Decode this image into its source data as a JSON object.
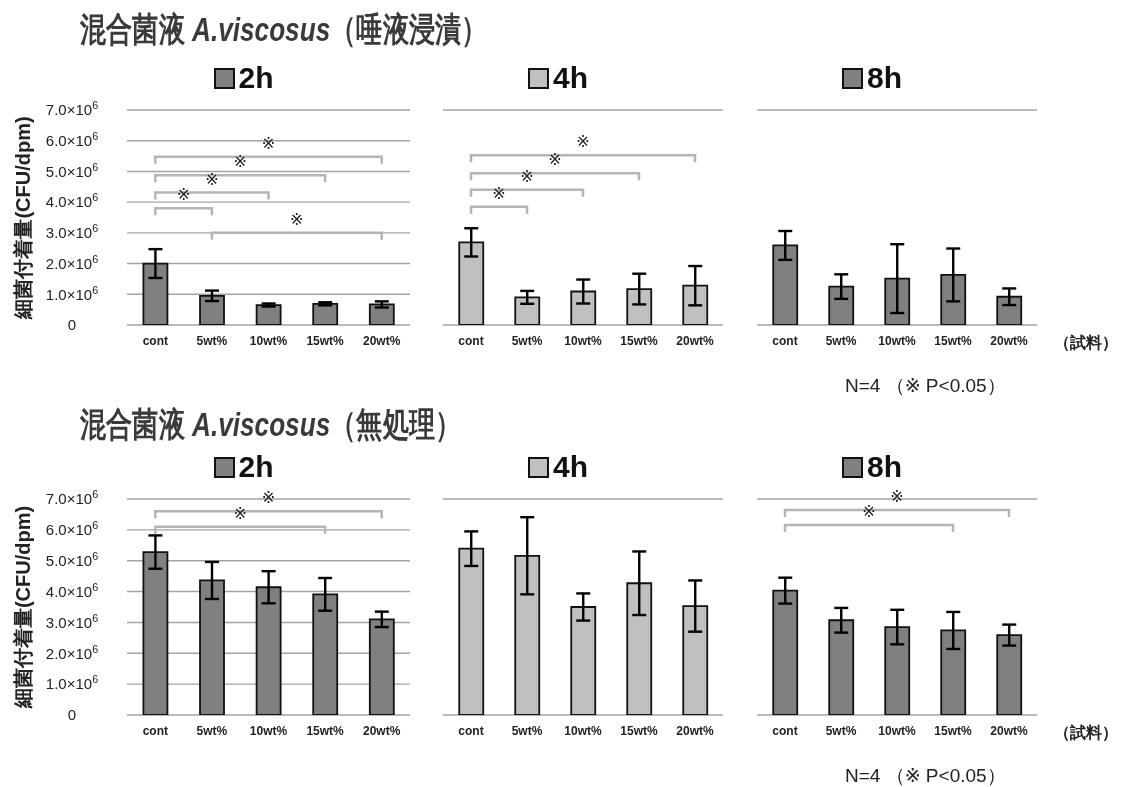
{
  "chart_data": [
    {
      "type": "bar",
      "title": "混合菌液 A.viscosus（唾液浸漬）",
      "ylabel": "細菌付着量(CFU/dpm)",
      "categories": [
        "cont",
        "5wt%",
        "10wt%",
        "15wt%",
        "20wt%"
      ],
      "series": [
        {
          "name": "2h",
          "color": "#808080",
          "values": [
            2000000,
            950000,
            650000,
            690000,
            670000
          ],
          "errors": [
            470000,
            170000,
            50000,
            50000,
            100000
          ]
        }
      ],
      "ylim": [
        0,
        7000000
      ],
      "yticks": [
        {
          "value": 0,
          "label": "0"
        },
        {
          "value": 1000000,
          "label": "1.0×10$^{6}$"
        },
        {
          "value": 2000000,
          "label": "2.0×10$^{6}$"
        },
        {
          "value": 3000000,
          "label": "3.0×10$^{6}$"
        },
        {
          "value": 4000000,
          "label": "4.0×10$^{6}$"
        },
        {
          "value": 5000000,
          "label": "5.0×10$^{6}$"
        },
        {
          "value": 6000000,
          "label": "6.0×10$^{6}$"
        },
        {
          "value": 7000000,
          "label": "7.0×10$^{6}$"
        }
      ],
      "grid": "y",
      "legend": "top",
      "annotations": [
        "※",
        "※",
        "※",
        "※",
        "※"
      ]
    },
    {
      "type": "bar",
      "categories": [
        "cont",
        "5wt%",
        "10wt%",
        "15wt%",
        "20wt%"
      ],
      "series": [
        {
          "name": "4h",
          "color": "#c0c0c0",
          "values": [
            2690000,
            900000,
            1090000,
            1170000,
            1280000
          ],
          "errors": [
            460000,
            210000,
            390000,
            500000,
            640000
          ]
        }
      ],
      "ylim": [
        0,
        7000000
      ],
      "yticks": [
        {
          "value": 0,
          "label": null
        },
        {
          "value": 1000000,
          "label": null
        },
        {
          "value": 2000000,
          "label": null
        },
        {
          "value": 3000000,
          "label": null
        },
        {
          "value": 4000000,
          "label": null
        },
        {
          "value": 5000000,
          "label": null
        },
        {
          "value": 6000000,
          "label": null
        },
        {
          "value": 7000000,
          "label": null
        }
      ],
      "tick_labels": "x",
      "grid": "y",
      "legend": "top",
      "annotations": [
        "※",
        "※",
        "※",
        "※"
      ]
    },
    {
      "type": "bar",
      "xlabel": "（試料）",
      "categories": [
        "cont",
        "5wt%",
        "10wt%",
        "15wt%",
        "20wt%"
      ],
      "series": [
        {
          "name": "8h",
          "color": "#808080",
          "values": [
            2590000,
            1250000,
            1510000,
            1630000,
            920000
          ],
          "errors": [
            470000,
            400000,
            1120000,
            860000,
            270000
          ]
        }
      ],
      "ylim": [
        0,
        7000000
      ],
      "yticks": [
        {
          "value": 0,
          "label": null
        },
        {
          "value": 1000000,
          "label": null
        },
        {
          "value": 2000000,
          "label": null
        },
        {
          "value": 3000000,
          "label": null
        },
        {
          "value": 4000000,
          "label": null
        },
        {
          "value": 5000000,
          "label": null
        },
        {
          "value": 6000000,
          "label": null
        },
        {
          "value": 7000000,
          "label": null
        }
      ],
      "tick_labels": "x",
      "grid": "y",
      "legend": "top",
      "annotations": [
        "N=4 （※ P<0.05）"
      ]
    },
    {
      "type": "bar",
      "title": "混合菌液 A.viscosus（無処理）",
      "ylabel": "細菌付着量(CFU/dpm)",
      "categories": [
        "cont",
        "5wt%",
        "10wt%",
        "15wt%",
        "20wt%"
      ],
      "series": [
        {
          "name": "2h",
          "color": "#808080",
          "values": [
            5280000,
            4360000,
            4140000,
            3910000,
            3100000
          ],
          "errors": [
            540000,
            600000,
            520000,
            530000,
            250000
          ]
        }
      ],
      "ylim": [
        0,
        7000000
      ],
      "yticks": [
        {
          "value": 0,
          "label": "0"
        },
        {
          "value": 1000000,
          "label": "1.0×10$^{6}$"
        },
        {
          "value": 2000000,
          "label": "2.0×10$^{6}$"
        },
        {
          "value": 3000000,
          "label": "3.0×10$^{6}$"
        },
        {
          "value": 4000000,
          "label": "4.0×10$^{6}$"
        },
        {
          "value": 5000000,
          "label": "5.0×10$^{6}$"
        },
        {
          "value": 6000000,
          "label": "6.0×10$^{6}$"
        },
        {
          "value": 7000000,
          "label": "7.0×10$^{6}$"
        }
      ],
      "grid": "y",
      "legend": "top",
      "annotations": [
        "※",
        "※"
      ]
    },
    {
      "type": "bar",
      "categories": [
        "cont",
        "5wt%",
        "10wt%",
        "15wt%",
        "20wt%"
      ],
      "series": [
        {
          "name": "4h",
          "color": "#c0c0c0",
          "values": [
            5390000,
            5160000,
            3500000,
            4270000,
            3530000
          ],
          "errors": [
            560000,
            1250000,
            440000,
            1030000,
            830000
          ]
        }
      ],
      "ylim": [
        0,
        7000000
      ],
      "yticks": [
        {
          "value": 0,
          "label": null
        },
        {
          "value": 1000000,
          "label": null
        },
        {
          "value": 2000000,
          "label": null
        },
        {
          "value": 3000000,
          "label": null
        },
        {
          "value": 4000000,
          "label": null
        },
        {
          "value": 5000000,
          "label": null
        },
        {
          "value": 6000000,
          "label": null
        },
        {
          "value": 7000000,
          "label": null
        }
      ],
      "tick_labels": "x",
      "grid": "y",
      "legend": "top"
    },
    {
      "type": "bar",
      "xlabel": "（試料）",
      "categories": [
        "cont",
        "5wt%",
        "10wt%",
        "15wt%",
        "20wt%"
      ],
      "series": [
        {
          "name": "8h",
          "color": "#808080",
          "values": [
            4030000,
            3070000,
            2850000,
            2740000,
            2590000
          ],
          "errors": [
            420000,
            400000,
            560000,
            600000,
            340000
          ]
        }
      ],
      "ylim": [
        0,
        7000000
      ],
      "yticks": [
        {
          "value": 0,
          "label": null
        },
        {
          "value": 1000000,
          "label": null
        },
        {
          "value": 2000000,
          "label": null
        },
        {
          "value": 3000000,
          "label": null
        },
        {
          "value": 4000000,
          "label": null
        },
        {
          "value": 5000000,
          "label": null
        },
        {
          "value": 6000000,
          "label": null
        },
        {
          "value": 7000000,
          "label": null
        }
      ],
      "tick_labels": "x",
      "grid": "y",
      "legend": "top",
      "annotations": [
        "※",
        "※",
        "N=4 （※ P<0.05）"
      ]
    }
  ]
}
